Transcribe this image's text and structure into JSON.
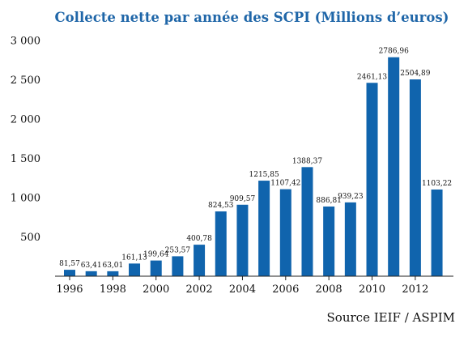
{
  "chart_data": {
    "type": "bar",
    "title": "Collecte nette par année des SCPI (Millions d’euros)",
    "source": "Source IEIF / ASPIM",
    "ylim": [
      0,
      3000
    ],
    "y_ticks": [
      {
        "value": 500,
        "label": "500"
      },
      {
        "value": 1000,
        "label": "1 000"
      },
      {
        "value": 1500,
        "label": "1 500"
      },
      {
        "value": 2000,
        "label": "2 000"
      },
      {
        "value": 2500,
        "label": "2 500"
      },
      {
        "value": 3000,
        "label": "3 000"
      }
    ],
    "x_ticks": [
      "1996",
      "1998",
      "2000",
      "2002",
      "2004",
      "2006",
      "2008",
      "2010",
      "2012"
    ],
    "grid": false,
    "color": "#1064ad",
    "bars": [
      {
        "year": 1996,
        "value": 81.57,
        "label": "81,57"
      },
      {
        "year": 1997,
        "value": 63.41,
        "label": "63,41"
      },
      {
        "year": 1998,
        "value": 63.01,
        "label": "63,01"
      },
      {
        "year": 1999,
        "value": 161.13,
        "label": "161,13"
      },
      {
        "year": 2000,
        "value": 199.64,
        "label": "199,64"
      },
      {
        "year": 2001,
        "value": 253.57,
        "label": "253,57"
      },
      {
        "year": 2002,
        "value": 400.78,
        "label": "400,78"
      },
      {
        "year": 2003,
        "value": 824.53,
        "label": "824,53"
      },
      {
        "year": 2004,
        "value": 909.57,
        "label": "909,57"
      },
      {
        "year": 2005,
        "value": 1215.85,
        "label": "1215,85"
      },
      {
        "year": 2006,
        "value": 1107.42,
        "label": "1107,42"
      },
      {
        "year": 2007,
        "value": 1388.37,
        "label": "1388,37"
      },
      {
        "year": 2008,
        "value": 886.81,
        "label": "886,81"
      },
      {
        "year": 2009,
        "value": 939.23,
        "label": "939,23"
      },
      {
        "year": 2010,
        "value": 2461.13,
        "label": "2461,13"
      },
      {
        "year": 2011,
        "value": 2786.96,
        "label": "2786,96"
      },
      {
        "year": 2012,
        "value": 2504.89,
        "label": "2504,89"
      },
      {
        "year": 2013,
        "value": 1103.22,
        "label": "1103,22"
      }
    ]
  }
}
